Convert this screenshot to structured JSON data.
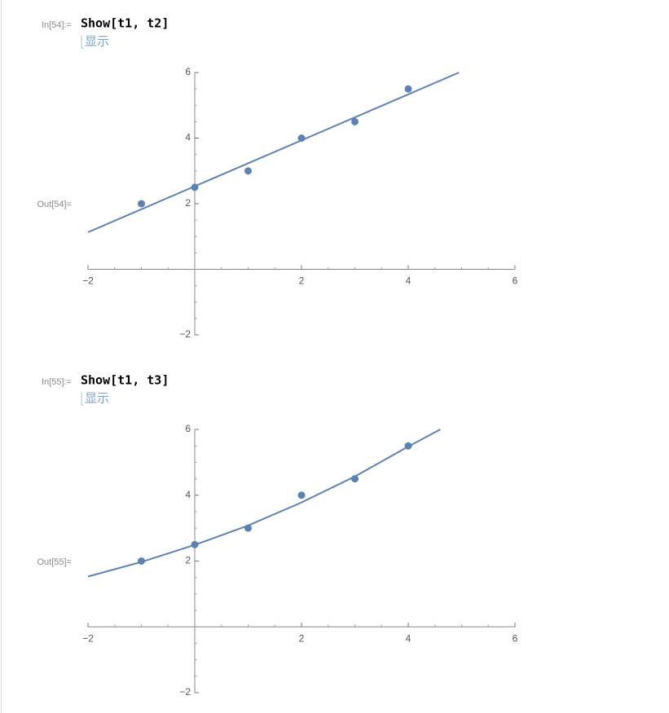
{
  "cells": [
    {
      "in_label": "In[54]:=",
      "code": "Show[t1, t2]",
      "hint": "显示",
      "out_label": "Out[54]="
    },
    {
      "in_label": "In[55]:=",
      "code": "Show[t1, t3]",
      "hint": "显示",
      "out_label": "Out[55]="
    }
  ],
  "chart_data": [
    {
      "type": "scatter",
      "series": [
        {
          "type": "scatter",
          "color": "#5e81b5",
          "x": [
            -1,
            0,
            1,
            2,
            3,
            4
          ],
          "values": [
            2,
            2.5,
            3,
            4,
            4.5,
            5.5
          ]
        },
        {
          "type": "line",
          "color": "#5e81b5",
          "x": [
            -2,
            4.95
          ],
          "values": [
            1.13,
            6
          ]
        }
      ],
      "xlim": [
        -2,
        6
      ],
      "ylim": [
        -2,
        6
      ],
      "xticks": [
        {
          "value": -2,
          "label": "−2"
        },
        2,
        4,
        6
      ],
      "yticks": [
        {
          "value": -2,
          "label": "−2"
        },
        2,
        4,
        6
      ]
    },
    {
      "type": "scatter",
      "series": [
        {
          "type": "scatter",
          "color": "#5e81b5",
          "x": [
            -1,
            0,
            1,
            2,
            3,
            4
          ],
          "values": [
            2,
            2.5,
            3,
            4,
            4.5,
            5.5
          ]
        },
        {
          "type": "line",
          "color": "#5e81b5",
          "x": [
            -2,
            -1,
            0,
            1,
            2,
            3,
            4,
            4.6
          ],
          "values": [
            1.53,
            1.97,
            2.49,
            3.08,
            3.78,
            4.57,
            5.48,
            6
          ]
        }
      ],
      "xlim": [
        -2,
        6
      ],
      "ylim": [
        -2,
        6
      ],
      "xticks": [
        {
          "value": -2,
          "label": "−2"
        },
        2,
        4,
        6
      ],
      "yticks": [
        {
          "value": -2,
          "label": "−2"
        },
        2,
        4,
        6
      ]
    }
  ]
}
